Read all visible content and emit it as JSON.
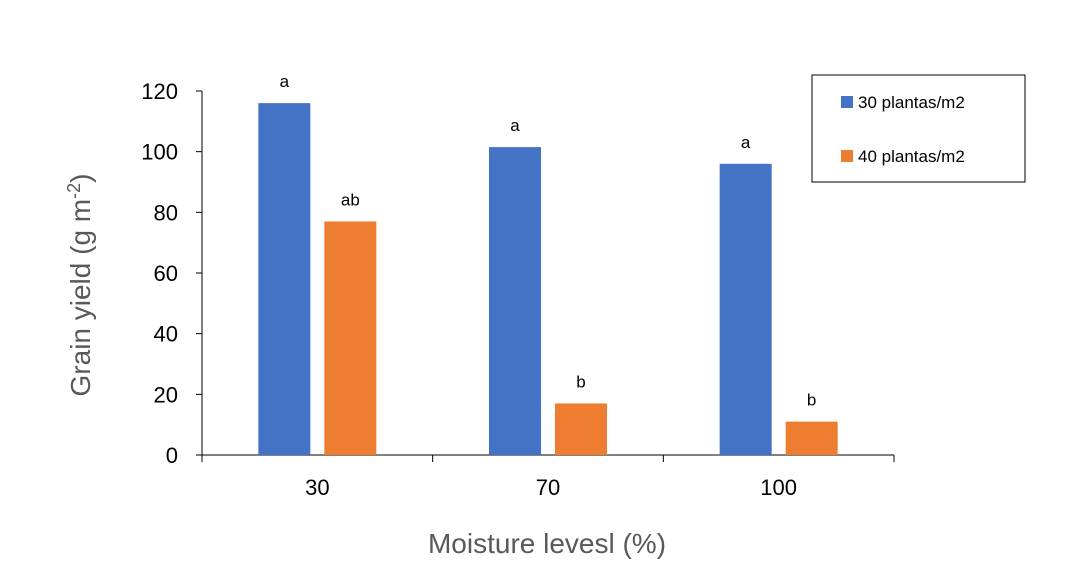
{
  "chart_data": {
    "type": "bar",
    "categories": [
      "30",
      "70",
      "100"
    ],
    "series": [
      {
        "name": "30 plantas/m2",
        "color": "#4472C4",
        "values": [
          116,
          101.5,
          96
        ],
        "labels": [
          "a",
          "a",
          "a"
        ]
      },
      {
        "name": "40 plantas/m2",
        "color": "#ED7D31",
        "values": [
          77,
          17,
          11
        ],
        "labels": [
          "ab",
          "b",
          "b"
        ]
      }
    ],
    "xlabel": "Moisture levesl (%)",
    "ylabel": {
      "base": "Grain yield (g m",
      "superscript": "-2",
      "close": ")"
    },
    "ylim": [
      0,
      120
    ],
    "yticks": [
      "0",
      "20",
      "40",
      "60",
      "80",
      "100",
      "120"
    ],
    "grid": false,
    "legend_position": "top-right"
  }
}
